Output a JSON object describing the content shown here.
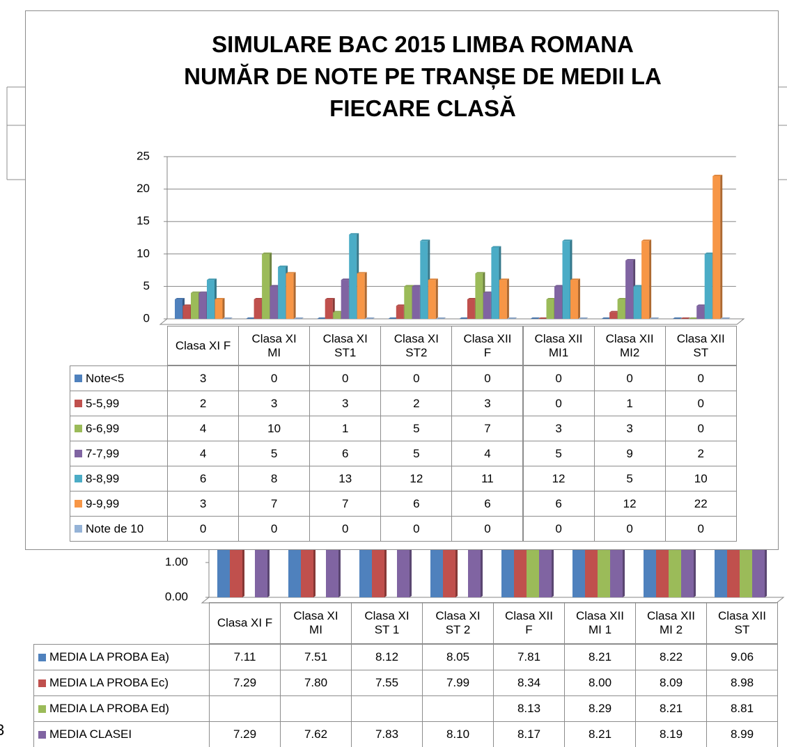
{
  "stray_label": "3",
  "chart_data": [
    {
      "type": "bar",
      "title": "SIMULARE BAC 2015 LIMBA ROMANA NUMĂR DE NOTE PE TRANȘE DE MEDII LA FIECARE CLASĂ",
      "categories": [
        "Clasa XI F",
        "Clasa XI MI",
        "Clasa XI ST1",
        "Clasa XI ST2",
        "Clasa XII F",
        "Clasa XII MI1",
        "Clasa XII MI2",
        "Clasa XII ST"
      ],
      "series": [
        {
          "name": "Note<5",
          "color": "#4f81bd",
          "values": [
            3,
            0,
            0,
            0,
            0,
            0,
            0,
            0
          ]
        },
        {
          "name": "5-5,99",
          "color": "#c0504d",
          "values": [
            2,
            3,
            3,
            2,
            3,
            0,
            1,
            0
          ]
        },
        {
          "name": "6-6,99",
          "color": "#9bbb59",
          "values": [
            4,
            10,
            1,
            5,
            7,
            3,
            3,
            0
          ]
        },
        {
          "name": "7-7,99",
          "color": "#8064a2",
          "values": [
            4,
            5,
            6,
            5,
            4,
            5,
            9,
            2
          ]
        },
        {
          "name": "8-8,99",
          "color": "#4bacc6",
          "values": [
            6,
            8,
            13,
            12,
            11,
            12,
            5,
            10
          ]
        },
        {
          "name": "9-9,99",
          "color": "#f79646",
          "values": [
            3,
            7,
            7,
            6,
            6,
            6,
            12,
            22
          ]
        },
        {
          "name": "Note de 10",
          "color": "#95b3d7",
          "values": [
            0,
            0,
            0,
            0,
            0,
            0,
            0,
            0
          ]
        }
      ],
      "ylim": [
        0,
        25
      ],
      "yticks": [
        0,
        5,
        10,
        15,
        20,
        25
      ],
      "grid": true
    },
    {
      "type": "bar",
      "categories": [
        "Clasa XI F",
        "Clasa XI MI",
        "Clasa XI ST 1",
        "Clasa XI ST 2",
        "Clasa XII F",
        "Clasa XII MI 1",
        "Clasa XII MI 2",
        "Clasa XII ST"
      ],
      "series": [
        {
          "name": "MEDIA LA PROBA Ea)",
          "color": "#4f81bd",
          "values": [
            7.11,
            7.51,
            8.12,
            8.05,
            7.81,
            8.21,
            8.22,
            9.06
          ],
          "value_labels": [
            "7.11",
            "7.51",
            "8.12",
            "8.05",
            "7.81",
            "8.21",
            "8.22",
            "9.06"
          ]
        },
        {
          "name": "MEDIA LA PROBA Ec)",
          "color": "#c0504d",
          "values": [
            7.29,
            7.8,
            7.55,
            7.99,
            8.34,
            8,
            8.09,
            8.98
          ],
          "value_labels": [
            "7.29",
            "7.80",
            "7.55",
            "7.99",
            "8.34",
            "8.00",
            "8.09",
            "8.98"
          ]
        },
        {
          "name": "MEDIA LA PROBA Ed)",
          "color": "#9bbb59",
          "values": [
            null,
            null,
            null,
            null,
            8.13,
            8.29,
            8.21,
            8.81
          ],
          "value_labels": [
            null,
            null,
            null,
            null,
            "8.13",
            "8.29",
            "8.21",
            "8.81"
          ]
        },
        {
          "name": "MEDIA CLASEI",
          "color": "#8064a2",
          "values": [
            7.29,
            7.62,
            7.83,
            8.1,
            8.17,
            8.21,
            8.19,
            8.99
          ],
          "value_labels": [
            "7.29",
            "7.62",
            "7.83",
            "8.10",
            "8.17",
            "8.21",
            "8.19",
            "8.99"
          ]
        }
      ],
      "ylim": [
        0,
        10
      ],
      "yticks": [
        {
          "value": 0,
          "label": "0.00"
        },
        {
          "value": 1,
          "label": "1.00"
        }
      ],
      "grid": false
    }
  ]
}
